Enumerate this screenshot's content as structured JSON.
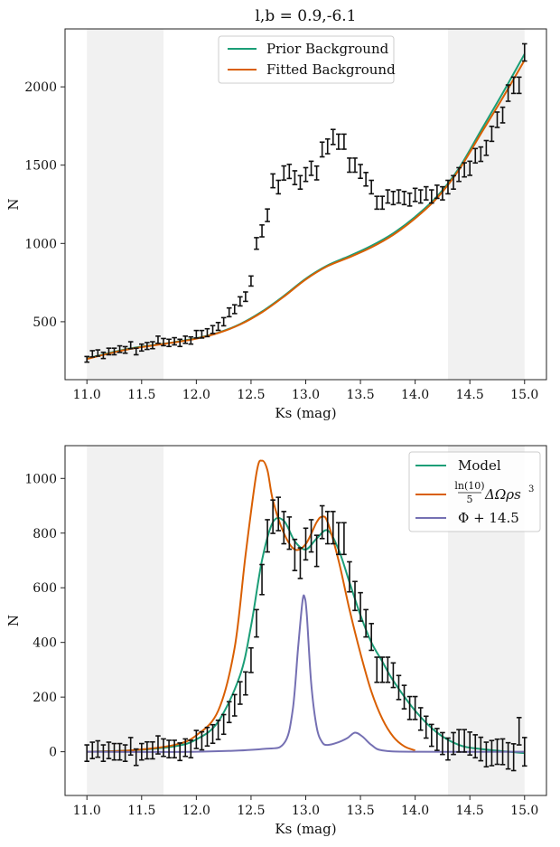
{
  "chart_data": [
    {
      "type": "line",
      "title": "l,b = 0.9,-6.1",
      "xlabel": "Ks (mag)",
      "ylabel": "N",
      "xlim": [
        10.8,
        15.2
      ],
      "ylim": [
        130,
        2370
      ],
      "xticks": [
        11.0,
        11.5,
        12.0,
        12.5,
        13.0,
        13.5,
        14.0,
        14.5,
        15.0
      ],
      "xtick_labels": [
        "11.0",
        "11.5",
        "12.0",
        "12.5",
        "13.0",
        "13.5",
        "14.0",
        "14.5",
        "15.0"
      ],
      "yticks": [
        500,
        1000,
        1500,
        2000
      ],
      "ytick_labels": [
        "500",
        "1000",
        "1500",
        "2000"
      ],
      "shaded_ranges": [
        [
          11.0,
          11.7
        ],
        [
          14.3,
          15.0
        ]
      ],
      "legend_position": "top-center",
      "series": [
        {
          "name": "Prior Background",
          "color": "#1b9e77",
          "x": [
            11.0,
            11.2,
            11.4,
            11.6,
            11.8,
            12.0,
            12.2,
            12.4,
            12.6,
            12.8,
            13.0,
            13.2,
            13.4,
            13.6,
            13.8,
            14.0,
            14.2,
            14.4,
            14.6,
            14.8,
            15.0
          ],
          "y": [
            265,
            300,
            330,
            350,
            370,
            395,
            430,
            485,
            565,
            665,
            775,
            860,
            920,
            985,
            1065,
            1170,
            1300,
            1480,
            1720,
            1960,
            2210
          ]
        },
        {
          "name": "Fitted Background",
          "color": "#d95f02",
          "x": [
            11.0,
            11.2,
            11.4,
            11.6,
            11.8,
            12.0,
            12.2,
            12.4,
            12.6,
            12.8,
            13.0,
            13.2,
            13.4,
            13.6,
            13.8,
            14.0,
            14.2,
            14.4,
            14.6,
            14.8,
            15.0
          ],
          "y": [
            262,
            297,
            327,
            348,
            368,
            392,
            428,
            482,
            560,
            660,
            770,
            855,
            912,
            975,
            1055,
            1160,
            1290,
            1470,
            1700,
            1930,
            2170
          ]
        },
        {
          "name": "data",
          "color": "#111111",
          "type": "errorbar",
          "x": [
            11.0,
            11.05,
            11.1,
            11.15,
            11.2,
            11.25,
            11.3,
            11.35,
            11.4,
            11.45,
            11.5,
            11.55,
            11.6,
            11.65,
            11.7,
            11.75,
            11.8,
            11.85,
            11.9,
            11.95,
            12.0,
            12.05,
            12.1,
            12.15,
            12.2,
            12.25,
            12.3,
            12.35,
            12.4,
            12.45,
            12.5,
            12.55,
            12.6,
            12.65,
            12.7,
            12.75,
            12.8,
            12.85,
            12.9,
            12.95,
            13.0,
            13.05,
            13.1,
            13.15,
            13.2,
            13.25,
            13.3,
            13.35,
            13.4,
            13.45,
            13.5,
            13.55,
            13.6,
            13.65,
            13.7,
            13.75,
            13.8,
            13.85,
            13.9,
            13.95,
            14.0,
            14.05,
            14.1,
            14.15,
            14.2,
            14.25,
            14.3,
            14.35,
            14.4,
            14.45,
            14.5,
            14.55,
            14.6,
            14.65,
            14.7,
            14.75,
            14.8,
            14.85,
            14.9,
            14.95,
            15.0
          ],
          "y": [
            260,
            295,
            300,
            285,
            310,
            310,
            325,
            320,
            350,
            310,
            335,
            345,
            350,
            385,
            370,
            365,
            375,
            365,
            385,
            380,
            420,
            420,
            430,
            450,
            470,
            500,
            560,
            580,
            630,
            660,
            760,
            1000,
            1080,
            1180,
            1400,
            1360,
            1450,
            1460,
            1420,
            1390,
            1440,
            1480,
            1450,
            1600,
            1620,
            1680,
            1650,
            1650,
            1500,
            1500,
            1460,
            1410,
            1360,
            1260,
            1260,
            1300,
            1290,
            1300,
            1290,
            1280,
            1310,
            1300,
            1320,
            1300,
            1330,
            1320,
            1360,
            1390,
            1440,
            1470,
            1480,
            1560,
            1570,
            1610,
            1700,
            1790,
            1820,
            1960,
            2010,
            2010,
            2220
          ],
          "err": [
            18,
            20,
            20,
            20,
            21,
            21,
            21,
            21,
            22,
            21,
            22,
            22,
            22,
            23,
            23,
            23,
            23,
            23,
            23,
            23,
            24,
            24,
            25,
            25,
            25,
            26,
            28,
            28,
            29,
            30,
            32,
            37,
            38,
            40,
            44,
            43,
            45,
            45,
            44,
            43,
            44,
            45,
            44,
            47,
            47,
            48,
            48,
            48,
            45,
            45,
            44,
            43,
            43,
            41,
            41,
            42,
            42,
            42,
            42,
            41,
            42,
            42,
            42,
            42,
            42,
            42,
            43,
            43,
            44,
            45,
            45,
            46,
            46,
            47,
            48,
            49,
            50,
            52,
            52,
            52,
            55
          ]
        }
      ]
    },
    {
      "type": "line",
      "title": "",
      "xlabel": "Ks (mag)",
      "ylabel": "N",
      "xlim": [
        10.8,
        15.2
      ],
      "ylim": [
        -160,
        1120
      ],
      "xticks": [
        11.0,
        11.5,
        12.0,
        12.5,
        13.0,
        13.5,
        14.0,
        14.5,
        15.0
      ],
      "xtick_labels": [
        "11.0",
        "11.5",
        "12.0",
        "12.5",
        "13.0",
        "13.5",
        "14.0",
        "14.5",
        "15.0"
      ],
      "yticks": [
        0,
        200,
        400,
        600,
        800,
        1000
      ],
      "ytick_labels": [
        "0",
        "200",
        "400",
        "600",
        "800",
        "1000"
      ],
      "shaded_ranges": [
        [
          11.0,
          11.7
        ],
        [
          14.3,
          15.0
        ]
      ],
      "legend_position": "top-right",
      "series": [
        {
          "name": "Model",
          "color": "#1b9e77",
          "x": [
            11.0,
            11.4,
            11.8,
            12.0,
            12.2,
            12.4,
            12.5,
            12.6,
            12.7,
            12.8,
            12.9,
            13.0,
            13.1,
            13.2,
            13.3,
            13.4,
            13.5,
            13.6,
            13.7,
            13.8,
            14.0,
            14.2,
            14.4,
            14.6,
            15.0
          ],
          "y": [
            0,
            5,
            20,
            45,
            110,
            280,
            460,
            700,
            840,
            845,
            770,
            740,
            780,
            810,
            740,
            620,
            500,
            400,
            330,
            260,
            150,
            70,
            25,
            10,
            -5
          ]
        },
        {
          "name": "ln(10)/5 ΔΩρs³",
          "legend_label_main": "ΔΩρs",
          "legend_frac_num": "ln(10)",
          "legend_frac_den": "5",
          "legend_sup": "3",
          "color": "#d95f02",
          "x": [
            11.0,
            11.4,
            11.8,
            12.0,
            12.2,
            12.35,
            12.45,
            12.55,
            12.6,
            12.65,
            12.7,
            12.8,
            12.9,
            13.0,
            13.1,
            13.15,
            13.2,
            13.3,
            13.4,
            13.5,
            13.6,
            13.7,
            13.8,
            13.9,
            14.0
          ],
          "y": [
            0,
            5,
            25,
            60,
            150,
            380,
            720,
            1020,
            1065,
            1030,
            920,
            800,
            740,
            760,
            840,
            860,
            840,
            700,
            520,
            360,
            220,
            120,
            55,
            20,
            5
          ]
        },
        {
          "name": "Φ + 14.5",
          "color": "#7570b3",
          "x": [
            11.0,
            12.0,
            12.6,
            12.8,
            12.88,
            12.93,
            12.97,
            12.99,
            13.01,
            13.05,
            13.1,
            13.15,
            13.2,
            13.3,
            13.38,
            13.45,
            13.52,
            13.6,
            13.7,
            14.0,
            15.0
          ],
          "y": [
            0,
            0,
            10,
            30,
            150,
            380,
            550,
            565,
            500,
            250,
            90,
            35,
            25,
            35,
            50,
            70,
            55,
            25,
            5,
            0,
            0
          ]
        },
        {
          "name": "data",
          "color": "#111111",
          "type": "errorbar",
          "x": [
            11.0,
            11.05,
            11.1,
            11.15,
            11.2,
            11.25,
            11.3,
            11.35,
            11.4,
            11.45,
            11.5,
            11.55,
            11.6,
            11.65,
            11.7,
            11.75,
            11.8,
            11.85,
            11.9,
            11.95,
            12.0,
            12.05,
            12.1,
            12.15,
            12.2,
            12.25,
            12.3,
            12.35,
            12.4,
            12.45,
            12.5,
            12.55,
            12.6,
            12.65,
            12.7,
            12.75,
            12.8,
            12.85,
            12.9,
            12.95,
            13.0,
            13.05,
            13.1,
            13.15,
            13.2,
            13.25,
            13.3,
            13.35,
            13.4,
            13.45,
            13.5,
            13.55,
            13.6,
            13.65,
            13.7,
            13.75,
            13.8,
            13.85,
            13.9,
            13.95,
            14.0,
            14.05,
            14.1,
            14.15,
            14.2,
            14.25,
            14.3,
            14.35,
            14.4,
            14.45,
            14.5,
            14.55,
            14.6,
            14.65,
            14.7,
            14.75,
            14.8,
            14.85,
            14.9,
            14.95,
            15.0
          ],
          "y": [
            -5,
            5,
            10,
            -5,
            5,
            0,
            0,
            -5,
            20,
            -20,
            0,
            5,
            5,
            25,
            15,
            10,
            10,
            0,
            15,
            10,
            45,
            40,
            55,
            65,
            80,
            100,
            145,
            170,
            215,
            250,
            335,
            470,
            630,
            790,
            860,
            870,
            820,
            800,
            720,
            690,
            760,
            790,
            735,
            840,
            820,
            820,
            780,
            780,
            640,
            570,
            530,
            470,
            420,
            300,
            300,
            300,
            280,
            235,
            200,
            160,
            160,
            120,
            90,
            60,
            45,
            30,
            10,
            30,
            40,
            40,
            30,
            20,
            10,
            -10,
            -5,
            0,
            0,
            -15,
            -20,
            75,
            0
          ],
          "err": [
            30,
            30,
            30,
            30,
            30,
            30,
            30,
            30,
            32,
            30,
            30,
            31,
            31,
            33,
            32,
            32,
            32,
            32,
            32,
            32,
            33,
            33,
            34,
            34,
            35,
            36,
            38,
            39,
            41,
            42,
            45,
            50,
            55,
            59,
            61,
            61,
            59,
            59,
            57,
            56,
            58,
            59,
            57,
            60,
            59,
            59,
            58,
            58,
            55,
            53,
            52,
            50,
            49,
            46,
            46,
            46,
            45,
            44,
            43,
            42,
            42,
            41,
            40,
            40,
            40,
            40,
            40,
            40,
            41,
            41,
            42,
            42,
            43,
            45,
            46,
            46,
            47,
            48,
            49,
            50,
            52
          ]
        }
      ]
    }
  ]
}
